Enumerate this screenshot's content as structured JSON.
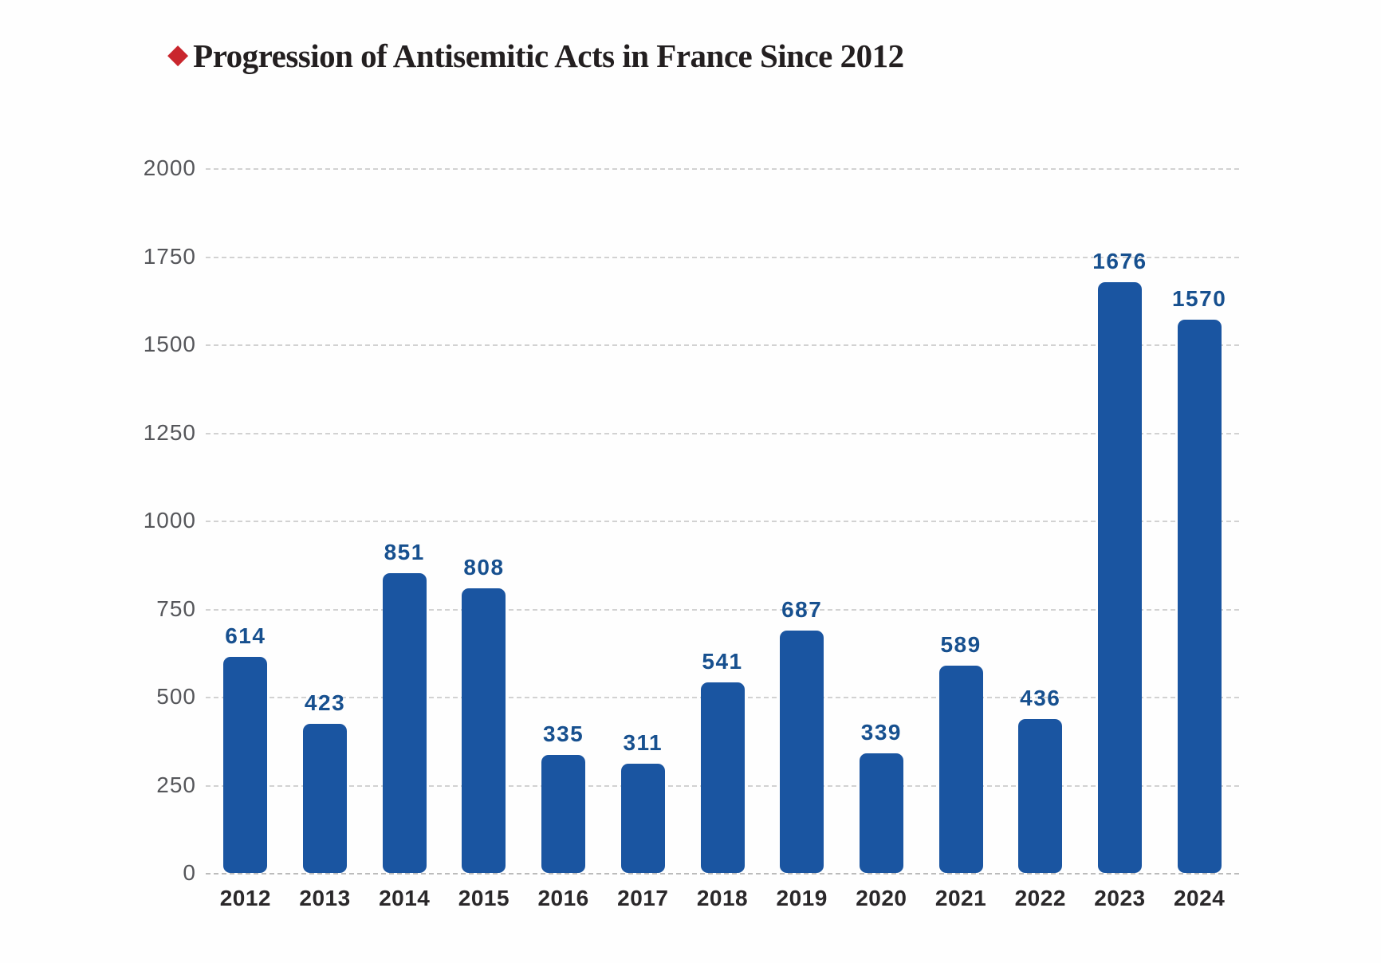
{
  "header": {
    "diamond_icon": "◆",
    "title": "Progression of Antisemitic Acts in France Since 2012"
  },
  "chart_data": {
    "type": "bar",
    "title": "Progression of Antisemitic Acts in France Since 2012",
    "categories": [
      "2012",
      "2013",
      "2014",
      "2015",
      "2016",
      "2017",
      "2018",
      "2019",
      "2020",
      "2021",
      "2022",
      "2023",
      "2024"
    ],
    "values": [
      614,
      423,
      851,
      808,
      335,
      311,
      541,
      687,
      339,
      589,
      436,
      1676,
      1570
    ],
    "xlabel": "",
    "ylabel": "",
    "ylim": [
      0,
      2000
    ],
    "yticks": [
      0,
      250,
      500,
      750,
      1000,
      1250,
      1500,
      1750,
      2000
    ],
    "grid": "horizontal-dashed",
    "legend": "none",
    "bar_color": "#1a55a1",
    "value_label_color": "#17508f",
    "accent_red": "#c9262d",
    "title_color": "#231f20",
    "y_tick_color": "#55565a",
    "x_tick_color": "#2a282a",
    "gridline_color": "#d2d2d2"
  }
}
